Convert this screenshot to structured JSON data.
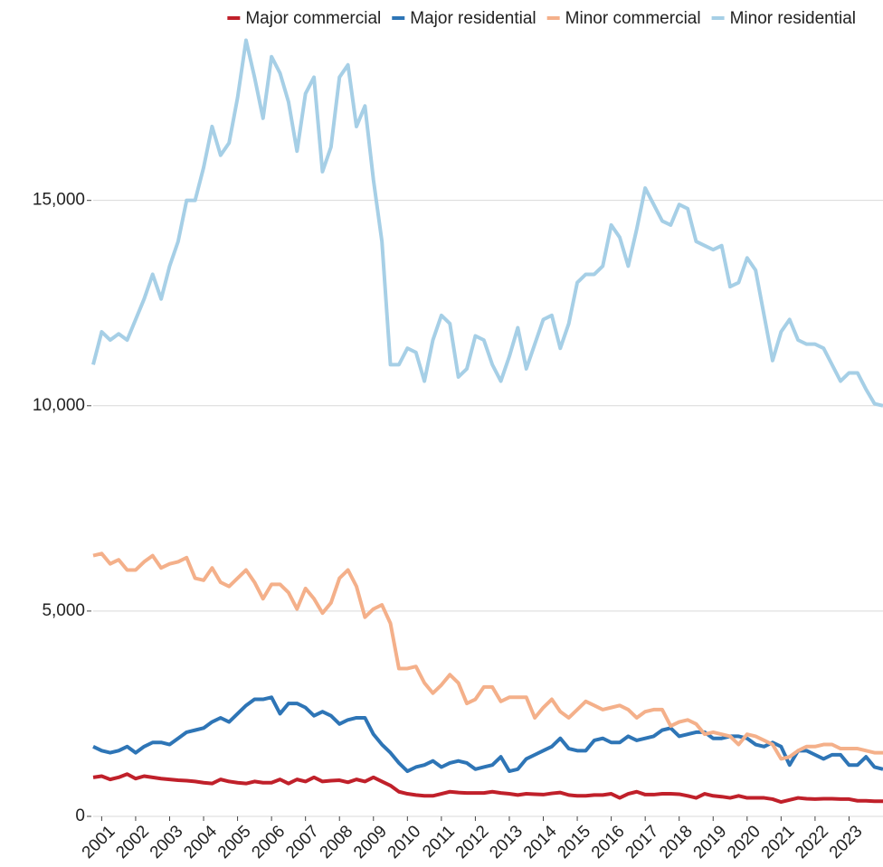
{
  "chart_data": {
    "type": "line",
    "x": [
      2000.75,
      2001,
      2001.25,
      2001.5,
      2001.75,
      2002,
      2002.25,
      2002.5,
      2002.75,
      2003,
      2003.25,
      2003.5,
      2003.75,
      2004,
      2004.25,
      2004.5,
      2004.75,
      2005,
      2005.25,
      2005.5,
      2005.75,
      2006,
      2006.25,
      2006.5,
      2006.75,
      2007,
      2007.25,
      2007.5,
      2007.75,
      2008,
      2008.25,
      2008.5,
      2008.75,
      2009,
      2009.25,
      2009.5,
      2009.75,
      2010,
      2010.25,
      2010.5,
      2010.75,
      2011,
      2011.25,
      2011.5,
      2011.75,
      2012,
      2012.25,
      2012.5,
      2012.75,
      2013,
      2013.25,
      2013.5,
      2013.75,
      2014,
      2014.25,
      2014.5,
      2014.75,
      2015,
      2015.25,
      2015.5,
      2015.75,
      2016,
      2016.25,
      2016.5,
      2016.75,
      2017,
      2017.25,
      2017.5,
      2017.75,
      2018,
      2018.25,
      2018.5,
      2018.75,
      2019,
      2019.25,
      2019.5,
      2019.75,
      2020,
      2020.25,
      2020.5,
      2020.75,
      2021,
      2021.25,
      2021.5,
      2021.75,
      2022,
      2022.25,
      2022.5,
      2022.75,
      2023,
      2023.25,
      2023.5,
      2023.75,
      2024
    ],
    "xlim": [
      2000.75,
      2024
    ],
    "xticks": [
      2001,
      2002,
      2003,
      2004,
      2005,
      2006,
      2007,
      2008,
      2009,
      2010,
      2011,
      2012,
      2013,
      2014,
      2015,
      2016,
      2017,
      2018,
      2019,
      2020,
      2021,
      2022,
      2023
    ],
    "ylim": [
      0,
      19000
    ],
    "yticks": [
      0,
      {
        "value": 5000,
        "label": "5,000"
      },
      {
        "value": 10000,
        "label": "10,000"
      },
      {
        "value": 15000,
        "label": "15,000"
      }
    ],
    "grid": true,
    "legend": "top",
    "series": [
      {
        "name": "Major commercial",
        "color": "#c0202a",
        "values": [
          950,
          980,
          900,
          950,
          1030,
          920,
          980,
          950,
          920,
          900,
          880,
          870,
          850,
          820,
          800,
          900,
          850,
          820,
          800,
          850,
          820,
          820,
          900,
          800,
          900,
          850,
          950,
          850,
          870,
          880,
          830,
          900,
          850,
          950,
          850,
          750,
          600,
          550,
          520,
          500,
          500,
          550,
          600,
          580,
          570,
          570,
          570,
          600,
          570,
          550,
          520,
          550,
          540,
          530,
          560,
          580,
          520,
          500,
          500,
          520,
          520,
          550,
          450,
          550,
          600,
          530,
          530,
          550,
          550,
          540,
          500,
          450,
          550,
          500,
          480,
          450,
          500,
          450,
          450,
          450,
          420,
          350,
          400,
          450,
          430,
          420,
          430,
          430,
          420,
          420,
          380,
          380,
          370,
          370
        ]
      },
      {
        "name": "Major residential",
        "color": "#2e75b6",
        "values": [
          1700,
          1600,
          1550,
          1600,
          1700,
          1550,
          1700,
          1800,
          1800,
          1750,
          1900,
          2050,
          2100,
          2150,
          2300,
          2400,
          2300,
          2500,
          2700,
          2850,
          2850,
          2900,
          2500,
          2750,
          2750,
          2650,
          2450,
          2550,
          2450,
          2250,
          2350,
          2400,
          2400,
          2000,
          1750,
          1550,
          1300,
          1100,
          1200,
          1250,
          1350,
          1200,
          1300,
          1350,
          1300,
          1150,
          1200,
          1250,
          1450,
          1100,
          1150,
          1400,
          1500,
          1600,
          1700,
          1900,
          1650,
          1600,
          1600,
          1850,
          1900,
          1800,
          1800,
          1950,
          1850,
          1900,
          1950,
          2100,
          2150,
          1950,
          2000,
          2050,
          2050,
          1900,
          1900,
          1950,
          1950,
          1900,
          1750,
          1700,
          1800,
          1700,
          1250,
          1600,
          1600,
          1500,
          1400,
          1500,
          1500,
          1250,
          1250,
          1450,
          1200,
          1150
        ]
      },
      {
        "name": "Minor commercial",
        "color": "#f4b08a",
        "values": [
          6350,
          6400,
          6150,
          6250,
          6000,
          6000,
          6200,
          6350,
          6050,
          6150,
          6200,
          6300,
          5800,
          5750,
          6050,
          5700,
          5600,
          5800,
          6000,
          5700,
          5300,
          5650,
          5650,
          5450,
          5050,
          5550,
          5300,
          4950,
          5200,
          5800,
          6000,
          5600,
          4850,
          5050,
          5150,
          4700,
          3600,
          3600,
          3650,
          3250,
          3000,
          3200,
          3450,
          3250,
          2750,
          2850,
          3150,
          3150,
          2800,
          2900,
          2900,
          2900,
          2400,
          2650,
          2850,
          2550,
          2400,
          2600,
          2800,
          2700,
          2600,
          2650,
          2700,
          2600,
          2400,
          2550,
          2600,
          2600,
          2200,
          2300,
          2350,
          2250,
          2000,
          2050,
          2000,
          1950,
          1750,
          2000,
          1950,
          1850,
          1750,
          1400,
          1450,
          1600,
          1700,
          1700,
          1750,
          1750,
          1650,
          1650,
          1650,
          1600,
          1550,
          1550
        ]
      },
      {
        "name": "Minor residential",
        "color": "#a6cfe6",
        "values": [
          11000,
          11800,
          11600,
          11750,
          11600,
          12100,
          12600,
          13200,
          12600,
          13400,
          14000,
          15000,
          15000,
          15800,
          16800,
          16100,
          16400,
          17500,
          18900,
          18000,
          17000,
          18500,
          18100,
          17400,
          16200,
          17600,
          18000,
          15700,
          16300,
          18000,
          18300,
          16800,
          17300,
          15500,
          14000,
          11000,
          11000,
          11400,
          11300,
          10600,
          11600,
          12200,
          12000,
          10700,
          10900,
          11700,
          11600,
          11000,
          10600,
          11200,
          11900,
          10900,
          11500,
          12100,
          12200,
          11400,
          12000,
          13000,
          13200,
          13200,
          13400,
          14400,
          14100,
          13400,
          14300,
          15300,
          14900,
          14500,
          14400,
          14900,
          14800,
          14000,
          13900,
          13800,
          13900,
          12900,
          13000,
          13600,
          13300,
          12200,
          11100,
          11800,
          12100,
          11600,
          11500,
          11500,
          11400,
          11000,
          10600,
          10800,
          10800,
          10400,
          10050,
          10000
        ]
      }
    ]
  }
}
